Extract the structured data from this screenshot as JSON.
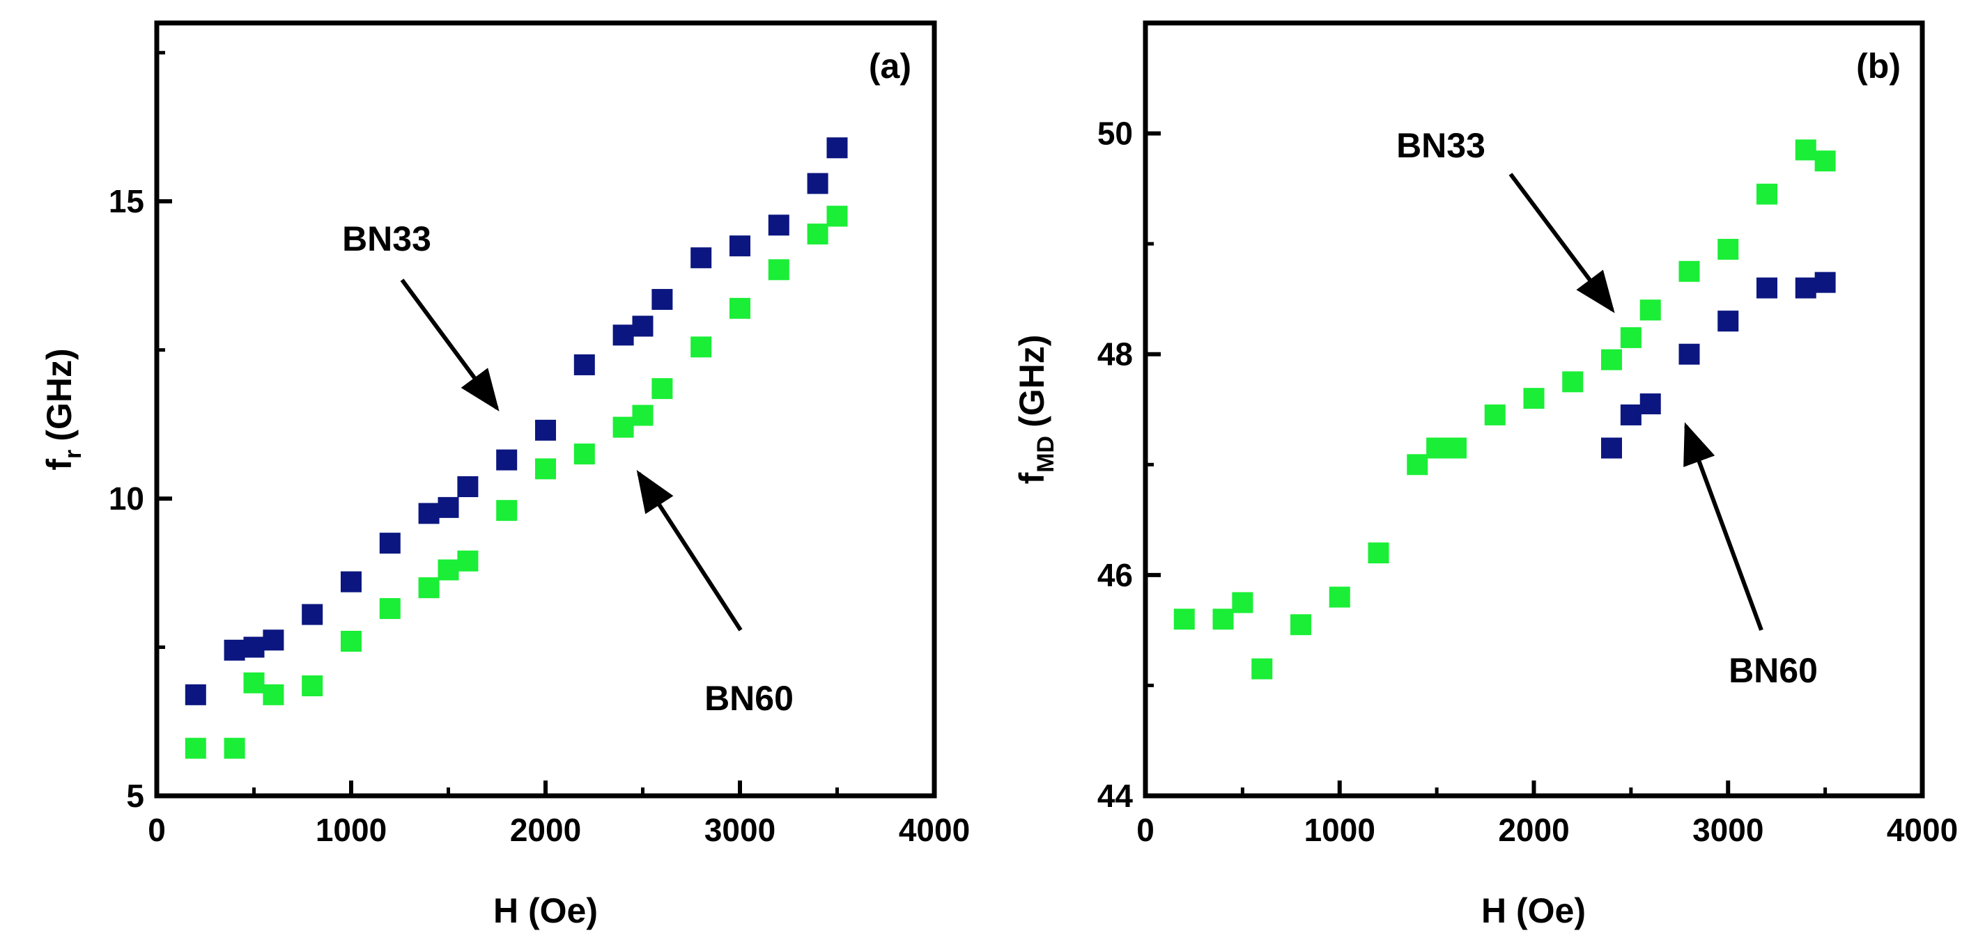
{
  "chart_data": [
    {
      "type": "scatter",
      "panel_label": "(a)",
      "xlabel": "H (Oe)",
      "ylabel": "f",
      "ylabel_sub": "r",
      "ylabel_unit": "(GHz)",
      "xlim": [
        0,
        4000
      ],
      "ylim": [
        5,
        18
      ],
      "xticks": [
        0,
        1000,
        2000,
        3000,
        4000
      ],
      "yticks": [
        5,
        10,
        15
      ],
      "xminor": [
        500,
        1500,
        2500,
        3500
      ],
      "yminor": [
        7.5,
        12.5,
        17.5
      ],
      "series": [
        {
          "name": "BN33",
          "color": "#0b1680",
          "x": [
            200,
            400,
            500,
            600,
            800,
            1000,
            1200,
            1400,
            1500,
            1600,
            1800,
            2000,
            2200,
            2400,
            2500,
            2600,
            2800,
            3000,
            3200,
            3400,
            3500
          ],
          "y": [
            6.7,
            7.45,
            7.5,
            7.62,
            8.05,
            8.6,
            9.25,
            9.75,
            9.85,
            10.2,
            10.65,
            11.15,
            12.25,
            12.75,
            12.9,
            13.35,
            14.05,
            14.25,
            14.6,
            15.3,
            15.9
          ]
        },
        {
          "name": "BN60",
          "color": "#1aee36",
          "x": [
            200,
            400,
            500,
            600,
            800,
            1000,
            1200,
            1400,
            1500,
            1600,
            1800,
            2000,
            2200,
            2400,
            2500,
            2600,
            2800,
            3000,
            3200,
            3400,
            3500
          ],
          "y": [
            5.8,
            5.8,
            6.9,
            6.7,
            6.85,
            7.6,
            8.15,
            8.5,
            8.8,
            8.95,
            9.8,
            10.5,
            10.75,
            11.2,
            11.4,
            11.85,
            12.55,
            13.2,
            13.85,
            14.45,
            14.75
          ]
        }
      ],
      "annotations": [
        {
          "text": "BN33",
          "points_to": [
            1800,
            11.3
          ]
        },
        {
          "text": "BN60",
          "points_to": [
            2420,
            10.6
          ]
        }
      ]
    },
    {
      "type": "scatter",
      "panel_label": "(b)",
      "xlabel": "H (Oe)",
      "ylabel": "f",
      "ylabel_sub": "MD",
      "ylabel_unit": "(GHz)",
      "xlim": [
        0,
        4000
      ],
      "ylim": [
        44,
        51
      ],
      "xticks": [
        0,
        1000,
        2000,
        3000,
        4000
      ],
      "yticks": [
        44,
        46,
        48,
        50
      ],
      "xminor": [
        500,
        1500,
        2500,
        3500
      ],
      "yminor": [
        45,
        47,
        49,
        51
      ],
      "series": [
        {
          "name": "BN33",
          "color": "#0b1680",
          "x": [
            2400,
            2500,
            2600,
            2800,
            3000,
            3200,
            3400,
            3500
          ],
          "y": [
            47.15,
            47.45,
            47.55,
            48.0,
            48.3,
            48.6,
            48.6,
            48.65
          ]
        },
        {
          "name": "BN60",
          "color": "#1aee36",
          "x": [
            200,
            400,
            500,
            600,
            800,
            1000,
            1200,
            1400,
            1500,
            1600,
            1800,
            2000,
            2200,
            2400,
            2500,
            2600,
            2800,
            3000,
            3200,
            3400,
            3500
          ],
          "y": [
            45.6,
            45.6,
            45.75,
            45.15,
            45.55,
            45.8,
            46.2,
            47.0,
            47.15,
            47.15,
            47.45,
            47.6,
            47.75,
            47.95,
            48.15,
            48.4,
            48.75,
            48.95,
            49.45,
            49.85,
            49.75
          ]
        }
      ],
      "annotations": [
        {
          "text": "BN33",
          "points_to": [
            2430,
            48.4
          ]
        },
        {
          "text": "BN60",
          "points_to": [
            2710,
            47.55
          ]
        }
      ]
    }
  ]
}
